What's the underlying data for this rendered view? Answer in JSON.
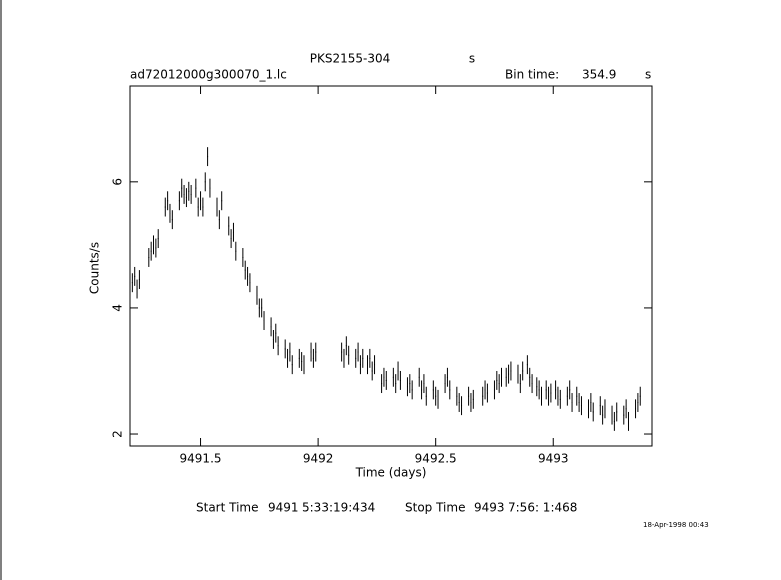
{
  "chart_data": {
    "type": "errorbar",
    "title": "PKS2155-304",
    "title_unit": "s",
    "subtitle": "ad72012000g300070_1.lc",
    "bin_time_label": "Bin time:",
    "bin_time": 354.9,
    "bin_time_unit": "s",
    "xlabel": "Time (days)",
    "ylabel": "Counts/s",
    "xlim": [
      9491.2,
      9493.42
    ],
    "ylim": [
      1.81,
      7.52
    ],
    "xticks": [
      9491.5,
      9492,
      9492.5,
      9493
    ],
    "yticks": [
      2,
      4,
      6
    ],
    "color": "#000000",
    "yerr": 0.15,
    "x": [
      9491.21,
      9491.22,
      9491.23,
      9491.24,
      9491.28,
      9491.29,
      9491.3,
      9491.31,
      9491.32,
      9491.35,
      9491.36,
      9491.37,
      9491.38,
      9491.41,
      9491.42,
      9491.43,
      9491.44,
      9491.45,
      9491.46,
      9491.48,
      9491.49,
      9491.5,
      9491.51,
      9491.52,
      9491.53,
      9491.54,
      9491.57,
      9491.58,
      9491.59,
      9491.62,
      9491.63,
      9491.64,
      9491.65,
      9491.68,
      9491.69,
      9491.7,
      9491.71,
      9491.74,
      9491.75,
      9491.76,
      9491.77,
      9491.8,
      9491.81,
      9491.82,
      9491.83,
      9491.86,
      9491.87,
      9491.88,
      9491.89,
      9491.92,
      9491.93,
      9491.94,
      9491.97,
      9491.98,
      9491.99,
      9492.1,
      9492.11,
      9492.12,
      9492.13,
      9492.16,
      9492.17,
      9492.18,
      9492.19,
      9492.21,
      9492.22,
      9492.23,
      9492.24,
      9492.27,
      9492.28,
      9492.29,
      9492.32,
      9492.33,
      9492.34,
      9492.35,
      9492.38,
      9492.39,
      9492.4,
      9492.43,
      9492.44,
      9492.45,
      9492.46,
      9492.49,
      9492.5,
      9492.51,
      9492.54,
      9492.55,
      9492.56,
      9492.59,
      9492.6,
      9492.61,
      9492.64,
      9492.65,
      9492.66,
      9492.7,
      9492.71,
      9492.72,
      9492.75,
      9492.76,
      9492.77,
      9492.78,
      9492.8,
      9492.81,
      9492.82,
      9492.85,
      9492.86,
      9492.87,
      9492.89,
      9492.9,
      9492.91,
      9492.93,
      9492.94,
      9492.95,
      9492.97,
      9492.98,
      9492.99,
      9493.01,
      9493.02,
      9493.03,
      9493.06,
      9493.07,
      9493.08,
      9493.1,
      9493.11,
      9493.12,
      9493.15,
      9493.16,
      9493.17,
      9493.2,
      9493.21,
      9493.22,
      9493.25,
      9493.26,
      9493.27,
      9493.3,
      9493.31,
      9493.32,
      9493.35,
      9493.36,
      9493.37
    ],
    "values": [
      4.4,
      4.5,
      4.3,
      4.45,
      4.8,
      4.9,
      5.0,
      4.95,
      5.1,
      5.6,
      5.7,
      5.5,
      5.4,
      5.7,
      5.9,
      5.8,
      5.75,
      5.85,
      5.8,
      5.9,
      5.6,
      5.7,
      5.6,
      6.0,
      6.4,
      5.9,
      5.6,
      5.4,
      5.7,
      5.3,
      5.1,
      5.2,
      4.9,
      4.8,
      4.6,
      4.5,
      4.4,
      4.2,
      4.0,
      4.0,
      3.8,
      3.7,
      3.5,
      3.6,
      3.4,
      3.35,
      3.2,
      3.3,
      3.1,
      3.2,
      3.15,
      3.1,
      3.3,
      3.2,
      3.3,
      3.3,
      3.2,
      3.4,
      3.25,
      3.2,
      3.3,
      3.1,
      3.2,
      3.1,
      3.2,
      3.0,
      3.1,
      2.8,
      2.9,
      2.85,
      2.9,
      2.8,
      3.0,
      2.85,
      2.75,
      2.8,
      2.7,
      2.9,
      2.7,
      2.8,
      2.6,
      2.7,
      2.6,
      2.55,
      2.8,
      2.9,
      2.7,
      2.6,
      2.5,
      2.45,
      2.6,
      2.5,
      2.55,
      2.6,
      2.7,
      2.65,
      2.7,
      2.85,
      2.8,
      2.9,
      2.9,
      2.95,
      3.0,
      2.95,
      2.8,
      3.0,
      3.1,
      2.9,
      2.8,
      2.75,
      2.7,
      2.6,
      2.7,
      2.6,
      2.65,
      2.7,
      2.6,
      2.55,
      2.6,
      2.7,
      2.5,
      2.6,
      2.5,
      2.45,
      2.4,
      2.5,
      2.35,
      2.45,
      2.3,
      2.4,
      2.3,
      2.2,
      2.35,
      2.3,
      2.4,
      2.2,
      2.4,
      2.5,
      2.6
    ],
    "start_label": "Start Time",
    "start_day": "9491",
    "start_clock": "5:33:19:434",
    "stop_label": "Stop Time",
    "stop_day": "9493",
    "stop_clock": "7:56: 1:468",
    "date": "18-Apr-1998 00:43"
  }
}
